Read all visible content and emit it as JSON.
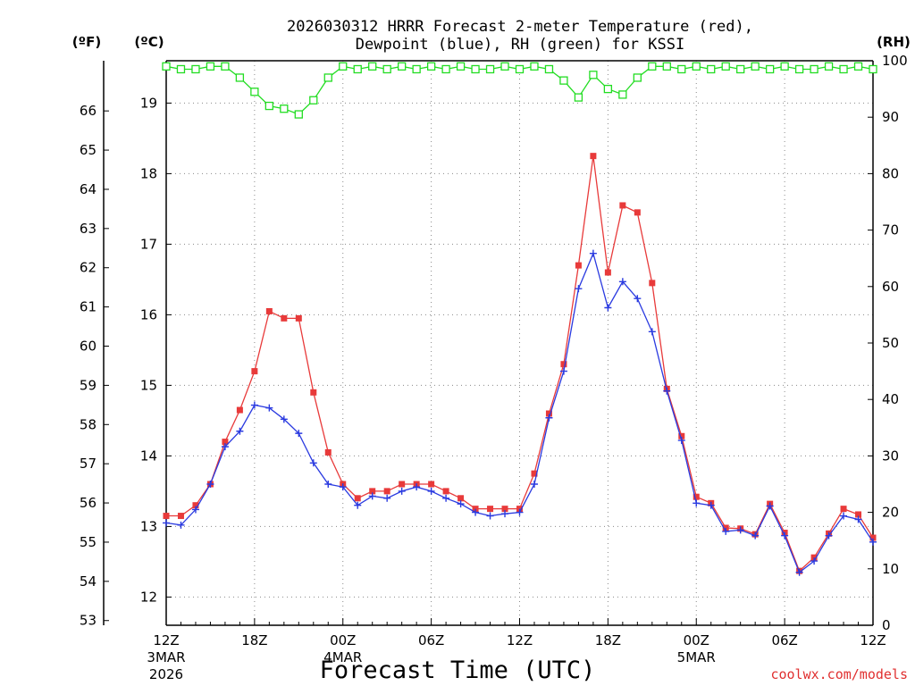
{
  "title_line1": "2026030312 HRRR Forecast 2-meter Temperature (red),",
  "title_line2": "Dewpoint (blue), RH (green) for KSSI",
  "unit_f": "(ºF)",
  "unit_c": "(ºC)",
  "unit_rh": "(RH)",
  "xlabel": "Forecast Time (UTC)",
  "credit": "coolwx.com/models",
  "colors": {
    "temperature": "#e83a3a",
    "dewpoint": "#2a3ae0",
    "rh": "#22dd22",
    "grid": "#8a8a8a"
  },
  "chart_data": {
    "type": "line",
    "x_hours": [
      0,
      1,
      2,
      3,
      4,
      5,
      6,
      7,
      8,
      9,
      10,
      11,
      12,
      13,
      14,
      15,
      16,
      17,
      18,
      19,
      20,
      21,
      22,
      23,
      24,
      25,
      26,
      27,
      28,
      29,
      30,
      31,
      32,
      33,
      34,
      35,
      36,
      37,
      38,
      39,
      40,
      41,
      42,
      43,
      44,
      45,
      46,
      47,
      48
    ],
    "x_ticks": [
      {
        "hour": 0,
        "label": "12Z",
        "sub1": "3MAR",
        "sub2": "2026"
      },
      {
        "hour": 6,
        "label": "18Z",
        "sub1": "",
        "sub2": ""
      },
      {
        "hour": 12,
        "label": "00Z",
        "sub1": "4MAR",
        "sub2": ""
      },
      {
        "hour": 18,
        "label": "06Z",
        "sub1": "",
        "sub2": ""
      },
      {
        "hour": 24,
        "label": "12Z",
        "sub1": "",
        "sub2": ""
      },
      {
        "hour": 30,
        "label": "18Z",
        "sub1": "",
        "sub2": ""
      },
      {
        "hour": 36,
        "label": "00Z",
        "sub1": "5MAR",
        "sub2": ""
      },
      {
        "hour": 42,
        "label": "06Z",
        "sub1": "",
        "sub2": ""
      },
      {
        "hour": 48,
        "label": "12Z",
        "sub1": "",
        "sub2": ""
      }
    ],
    "c_axis": {
      "range": [
        11.6,
        19.6
      ],
      "ticks": [
        12,
        13,
        14,
        15,
        16,
        17,
        18,
        19
      ]
    },
    "f_axis": {
      "ticks": [
        53,
        54,
        55,
        56,
        57,
        58,
        59,
        60,
        61,
        62,
        63,
        64,
        65,
        66
      ]
    },
    "rh_axis": {
      "range": [
        0,
        100
      ],
      "ticks": [
        0,
        10,
        20,
        30,
        40,
        50,
        60,
        70,
        80,
        90,
        100
      ]
    },
    "grid": true,
    "series": [
      {
        "name": "Temperature",
        "axis": "celsius",
        "marker": "filled-square",
        "values": [
          13.15,
          13.15,
          13.3,
          13.6,
          14.2,
          14.65,
          15.2,
          16.05,
          15.95,
          15.95,
          14.9,
          14.05,
          13.6,
          13.4,
          13.5,
          13.5,
          13.6,
          13.6,
          13.6,
          13.5,
          13.4,
          13.25,
          13.25,
          13.25,
          13.25,
          13.75,
          14.6,
          15.3,
          16.7,
          18.25,
          16.6,
          17.55,
          17.45,
          16.45,
          14.95,
          14.28,
          13.42,
          13.33,
          12.98,
          12.97,
          12.89,
          13.32,
          12.91,
          12.37,
          12.56,
          12.9,
          13.25,
          13.17,
          12.84
        ]
      },
      {
        "name": "Dewpoint",
        "axis": "celsius",
        "marker": "plus",
        "values": [
          13.05,
          13.02,
          13.24,
          13.6,
          14.13,
          14.35,
          14.72,
          14.68,
          14.52,
          14.32,
          13.9,
          13.6,
          13.56,
          13.3,
          13.43,
          13.4,
          13.5,
          13.56,
          13.5,
          13.4,
          13.32,
          13.2,
          13.15,
          13.18,
          13.2,
          13.6,
          14.54,
          15.2,
          16.37,
          16.87,
          16.1,
          16.47,
          16.23,
          15.76,
          14.92,
          14.22,
          13.33,
          13.3,
          12.93,
          12.95,
          12.87,
          13.29,
          12.87,
          12.35,
          12.51,
          12.87,
          13.15,
          13.1,
          12.78
        ]
      },
      {
        "name": "RH",
        "axis": "rh",
        "marker": "open-square",
        "values": [
          99,
          98.5,
          98.5,
          99,
          99,
          97,
          94.5,
          92,
          91.5,
          90.5,
          93,
          97,
          99,
          98.5,
          99,
          98.5,
          99,
          98.5,
          99,
          98.5,
          99,
          98.5,
          98.5,
          99,
          98.5,
          99,
          98.5,
          96.5,
          93.5,
          97.5,
          95,
          94,
          97,
          99,
          99,
          98.5,
          99,
          98.5,
          99,
          98.5,
          99,
          98.5,
          99,
          98.5,
          98.5,
          99,
          98.5,
          99,
          98.5
        ]
      }
    ]
  }
}
